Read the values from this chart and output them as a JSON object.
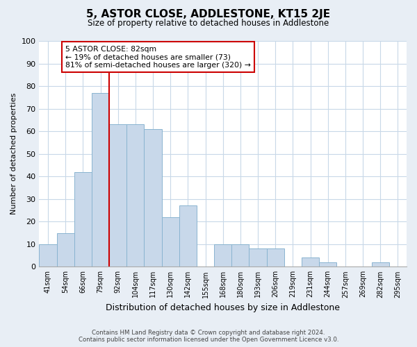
{
  "title": "5, ASTOR CLOSE, ADDLESTONE, KT15 2JE",
  "subtitle": "Size of property relative to detached houses in Addlestone",
  "xlabel": "Distribution of detached houses by size in Addlestone",
  "ylabel": "Number of detached properties",
  "footer_line1": "Contains HM Land Registry data © Crown copyright and database right 2024.",
  "footer_line2": "Contains public sector information licensed under the Open Government Licence v3.0.",
  "bin_labels": [
    "41sqm",
    "54sqm",
    "66sqm",
    "79sqm",
    "92sqm",
    "104sqm",
    "117sqm",
    "130sqm",
    "142sqm",
    "155sqm",
    "168sqm",
    "180sqm",
    "193sqm",
    "206sqm",
    "219sqm",
    "231sqm",
    "244sqm",
    "257sqm",
    "269sqm",
    "282sqm",
    "295sqm"
  ],
  "bar_heights": [
    10,
    15,
    42,
    77,
    63,
    63,
    61,
    22,
    27,
    0,
    10,
    10,
    8,
    8,
    0,
    4,
    2,
    0,
    0,
    2,
    0
  ],
  "bar_color": "#c8d8ea",
  "bar_edge_color": "#8ab4d0",
  "vline_x_index": 4,
  "vline_color": "#cc0000",
  "annotation_title": "5 ASTOR CLOSE: 82sqm",
  "annotation_line1": "← 19% of detached houses are smaller (73)",
  "annotation_line2": "81% of semi-detached houses are larger (320) →",
  "annotation_box_color": "#ffffff",
  "annotation_box_edge_color": "#cc0000",
  "ylim": [
    0,
    100
  ],
  "yticks": [
    0,
    10,
    20,
    30,
    40,
    50,
    60,
    70,
    80,
    90,
    100
  ],
  "background_color": "#e8eef5",
  "plot_bg_color": "#ffffff",
  "grid_color": "#c8d8e8"
}
